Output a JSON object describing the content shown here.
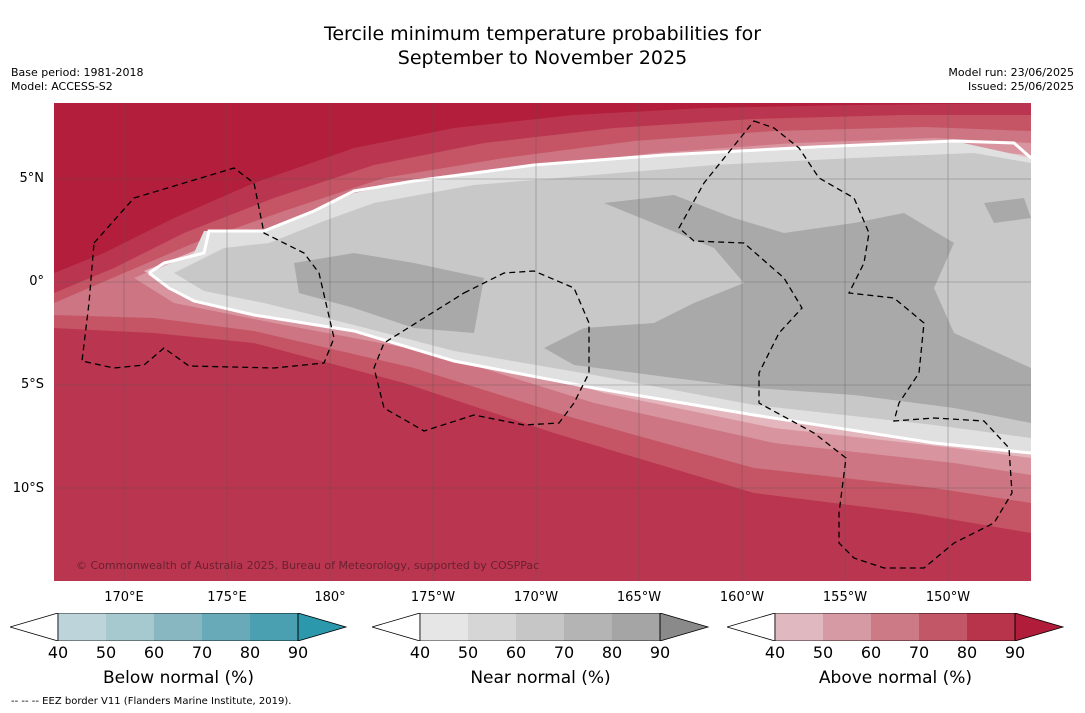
{
  "title_line1": "Tercile minimum temperature probabilities for",
  "title_line2": "September to November 2025",
  "base_period": "Base period: 1981-2018",
  "model": "Model: ACCESS-S2",
  "model_run": "Model run: 23/06/2025",
  "issued": "Issued: 25/06/2025",
  "copyright": "© Commonwealth of Australia 2025, Bureau of Meteorology, supported by COSPPac",
  "eez_note": "--  --  -- EEZ border V11 (Flanders Marine Institute, 2019).",
  "lat_labels": [
    "5°N",
    "0°",
    "5°S",
    "10°S"
  ],
  "lon_labels": [
    "170°E",
    "175°E",
    "180°",
    "175°W",
    "170°W",
    "165°W",
    "160°W",
    "155°W",
    "150°W"
  ],
  "colorbars": [
    {
      "label": "Below normal (%)",
      "ticks": [
        "40",
        "50",
        "60",
        "70",
        "80",
        "90"
      ],
      "colors": [
        "#ffffff",
        "#bdd4da",
        "#a6c8cf",
        "#88b7c2",
        "#69aab8",
        "#4aa0b0",
        "#2b98ac"
      ]
    },
    {
      "label": "Near normal (%)",
      "ticks": [
        "40",
        "50",
        "60",
        "70",
        "80",
        "90"
      ],
      "colors": [
        "#ffffff",
        "#e6e6e6",
        "#d6d6d6",
        "#c6c6c6",
        "#b4b4b4",
        "#a5a5a5",
        "#8a8a8a"
      ]
    },
    {
      "label": "Above normal (%)",
      "ticks": [
        "40",
        "50",
        "60",
        "70",
        "80",
        "90"
      ],
      "colors": [
        "#ffffff",
        "#e0b8bf",
        "#d59aa3",
        "#cb7a86",
        "#c25867",
        "#b8344a",
        "#b01c3a"
      ]
    }
  ],
  "colors": {
    "above_90": "#b21e3b",
    "above_80": "#ba3650",
    "above_70": "#c55565",
    "above_60": "#cd7582",
    "above_50": "#d8959f",
    "above_40": "#e3b7bd",
    "near_50": "#e0e0e0",
    "near_60": "#c8c8c8",
    "near_70": "#a9a9a9"
  }
}
